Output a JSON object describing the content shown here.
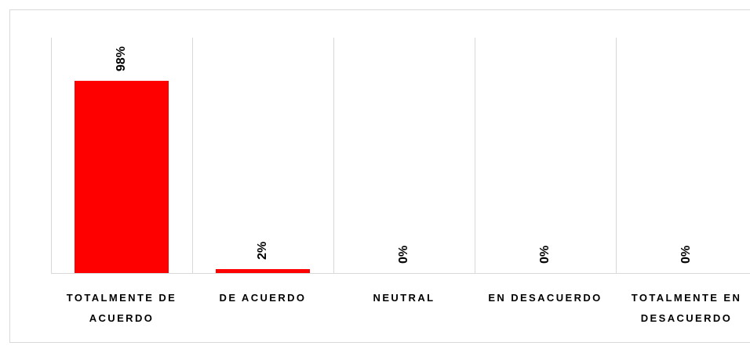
{
  "chart_data": {
    "type": "bar",
    "categories": [
      "TOTALMENTE DE ACUERDO",
      "DE ACUERDO",
      "NEUTRAL",
      "EN DESACUERDO",
      "TOTALMENTE EN DESACUERDO"
    ],
    "values": [
      98,
      2,
      0,
      0,
      0
    ],
    "value_labels": [
      "98%",
      "2%",
      "0%",
      "0%",
      "0%"
    ],
    "color": "#ff0000",
    "ylim": [
      0,
      120
    ]
  }
}
